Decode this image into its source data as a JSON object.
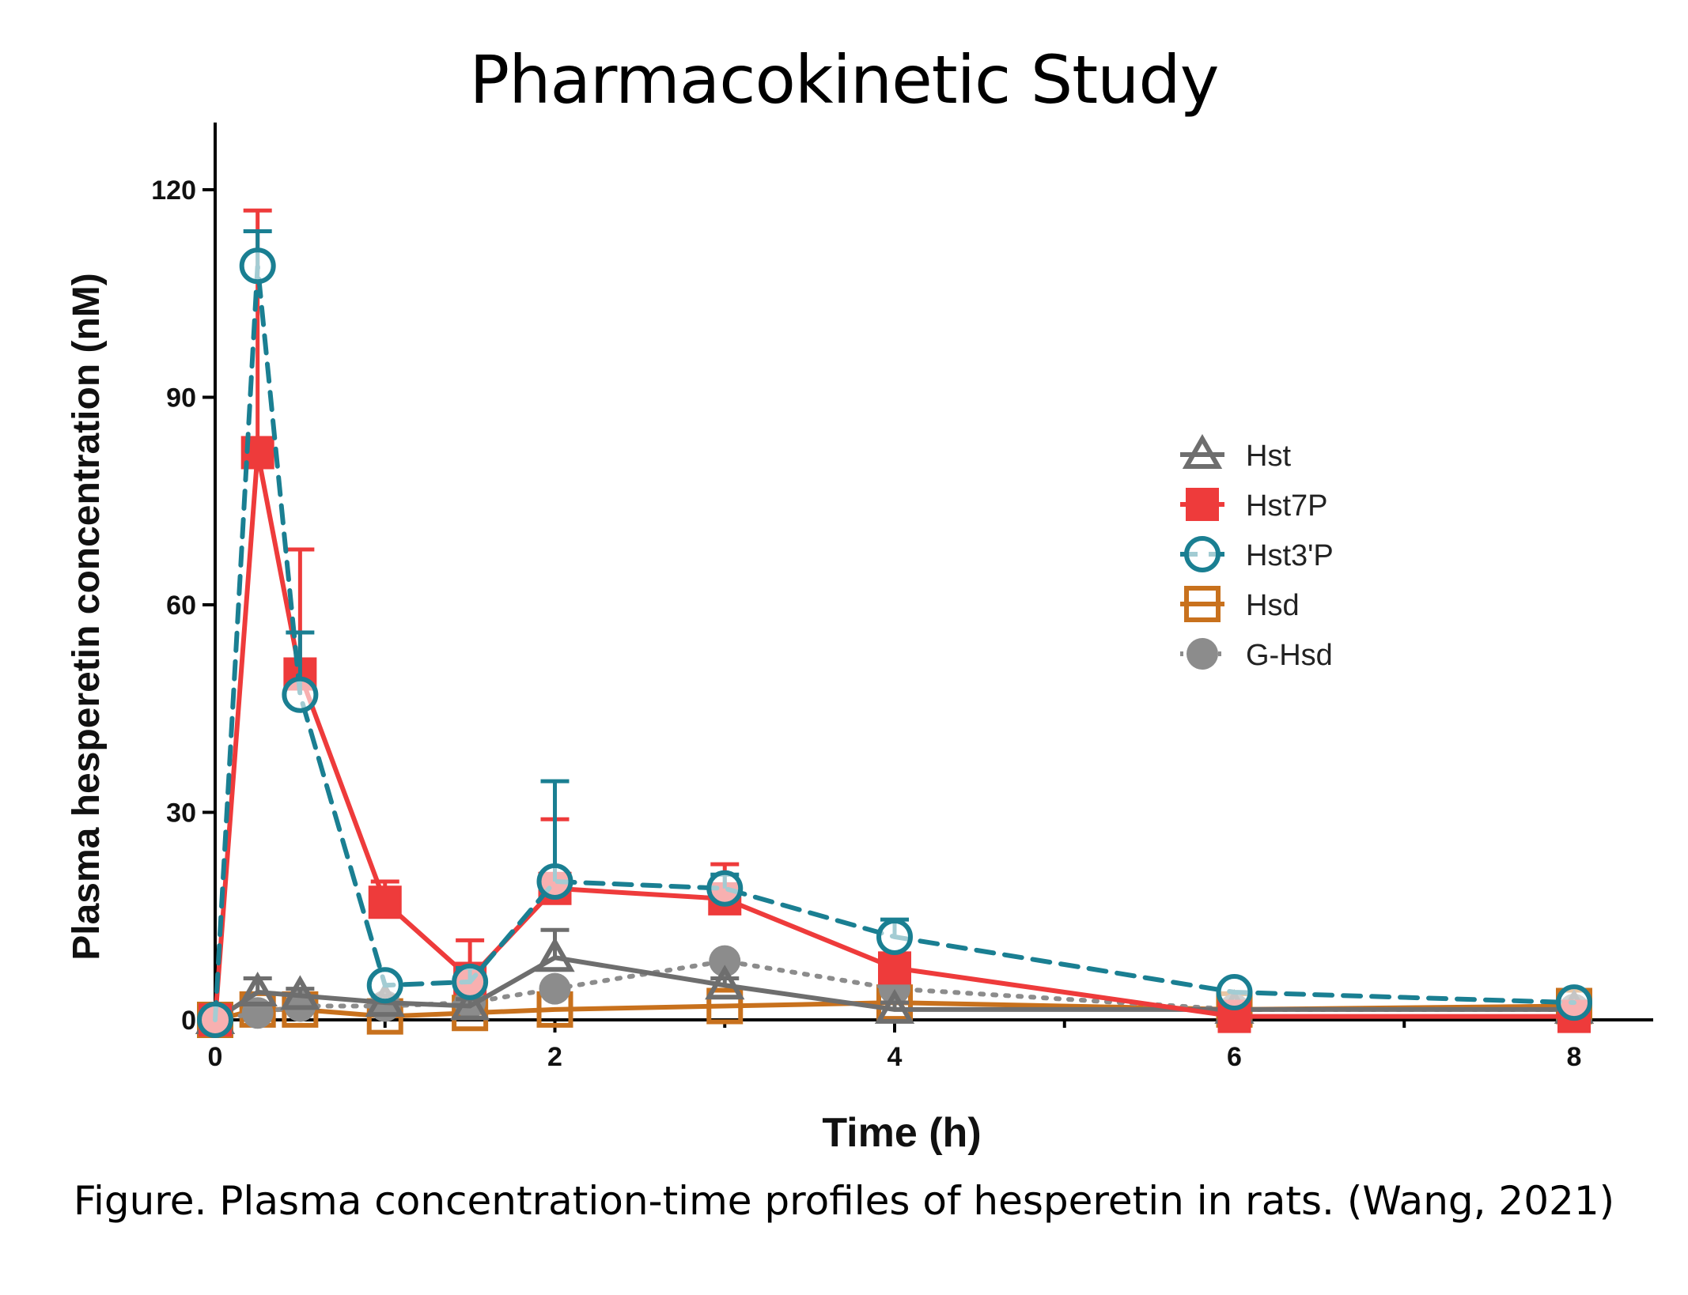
{
  "title": "Pharmacokinetic Study",
  "caption": "Figure. Plasma concentration-time profiles of hesperetin in rats. (Wang, 2021)",
  "chart_data": {
    "type": "line",
    "xlabel": "Time (h)",
    "ylabel": "Plasma hesperetin concentration (nM)",
    "xlim": [
      0,
      8.5
    ],
    "ylim": [
      0,
      130
    ],
    "xticks": [
      0,
      2,
      4,
      6,
      8
    ],
    "yticks": [
      0,
      30,
      60,
      90,
      120
    ],
    "grid": false,
    "legend_position": "center-right",
    "series": [
      {
        "name": "Hst",
        "color": "#6e6e6e",
        "marker": "triangle-open",
        "line": "solid",
        "x": [
          0,
          0.25,
          0.5,
          1,
          1.5,
          2,
          3,
          4,
          6,
          8
        ],
        "y": [
          0,
          4,
          3.5,
          2.5,
          2,
          9,
          5,
          1.5,
          1.5,
          1.5
        ],
        "error": [
          0,
          2,
          1,
          1,
          1,
          4,
          1,
          1,
          0,
          0
        ]
      },
      {
        "name": "Hst7P",
        "color": "#ee3b3b",
        "marker": "square-filled",
        "line": "solid",
        "x": [
          0,
          0.25,
          0.5,
          1,
          1.5,
          2,
          3,
          4,
          6,
          8
        ],
        "y": [
          0,
          82,
          50,
          17,
          6,
          19,
          17.5,
          7.5,
          0.5,
          0.5
        ],
        "error": [
          0,
          35,
          18,
          3,
          5.5,
          10,
          5,
          2,
          0,
          0
        ]
      },
      {
        "name": "Hst3'P",
        "color": "#1a7f92",
        "marker": "circle-open",
        "line": "dashed",
        "x": [
          0,
          0.25,
          0.5,
          1,
          1.5,
          2,
          3,
          4,
          6,
          8
        ],
        "y": [
          0,
          109,
          47,
          5,
          5.5,
          20,
          19,
          12,
          4,
          2.5
        ],
        "error": [
          0,
          5,
          9,
          0,
          2,
          14.5,
          2,
          2.5,
          0,
          0
        ]
      },
      {
        "name": "Hsd",
        "color": "#c8711d",
        "marker": "square-open",
        "line": "solid",
        "x": [
          0,
          0.25,
          0.5,
          1,
          1.5,
          2,
          3,
          4,
          6,
          8
        ],
        "y": [
          0,
          1.5,
          1.5,
          0.5,
          1,
          1.5,
          2,
          2.5,
          1.5,
          2
        ],
        "error": [
          0,
          0,
          0,
          0,
          0,
          0,
          0,
          0,
          0,
          0
        ]
      },
      {
        "name": "G-Hsd",
        "color": "#8c8c8c",
        "marker": "circle-filled",
        "line": "dotted",
        "x": [
          0,
          0.25,
          0.5,
          1,
          1.5,
          2,
          3,
          4,
          6,
          8
        ],
        "y": [
          0,
          1,
          2,
          2,
          2.5,
          4.5,
          8.5,
          4.5,
          1.5,
          1.5
        ],
        "error": [
          0,
          0,
          0,
          0,
          0,
          0,
          0,
          0,
          0,
          0
        ]
      }
    ]
  }
}
